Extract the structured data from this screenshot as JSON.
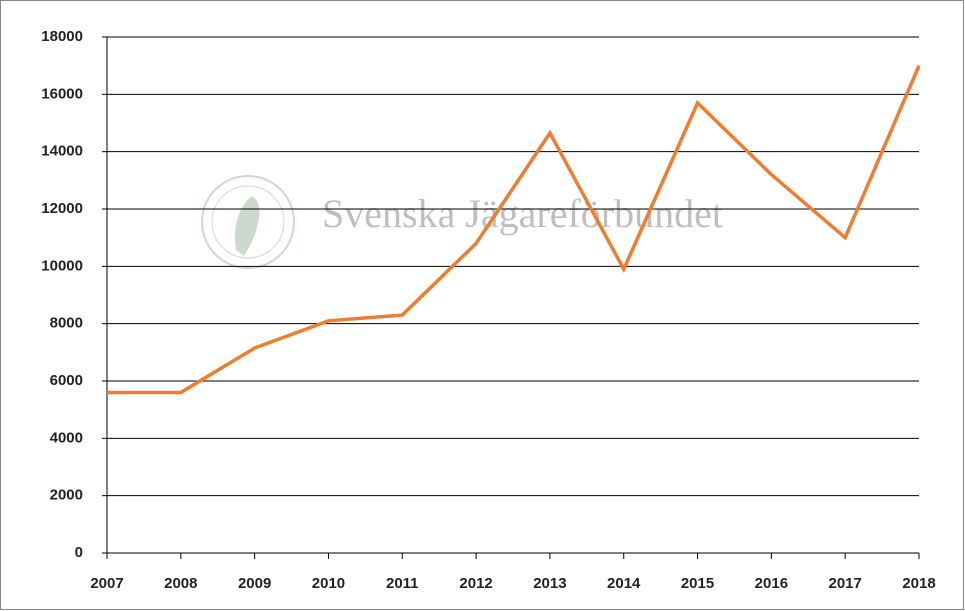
{
  "chart_data": {
    "type": "line",
    "watermark": "Svenska Jägareförbundet",
    "x": [
      2007,
      2008,
      2009,
      2010,
      2011,
      2012,
      2013,
      2014,
      2015,
      2016,
      2017,
      2018
    ],
    "xlim": [
      2007,
      2018
    ],
    "xticks": [
      2007,
      2008,
      2009,
      2010,
      2011,
      2012,
      2013,
      2014,
      2015,
      2016,
      2017,
      2018
    ],
    "series": [
      {
        "color": "#ed7d31",
        "values": [
          5600,
          5600,
          7150,
          8100,
          8300,
          10800,
          14650,
          9900,
          15700,
          13200,
          11000,
          17000
        ]
      }
    ],
    "ylim": [
      0,
      18000
    ],
    "yticks": [
      0,
      2000,
      4000,
      6000,
      8000,
      10000,
      12000,
      14000,
      16000,
      18000
    ],
    "grid": true
  }
}
